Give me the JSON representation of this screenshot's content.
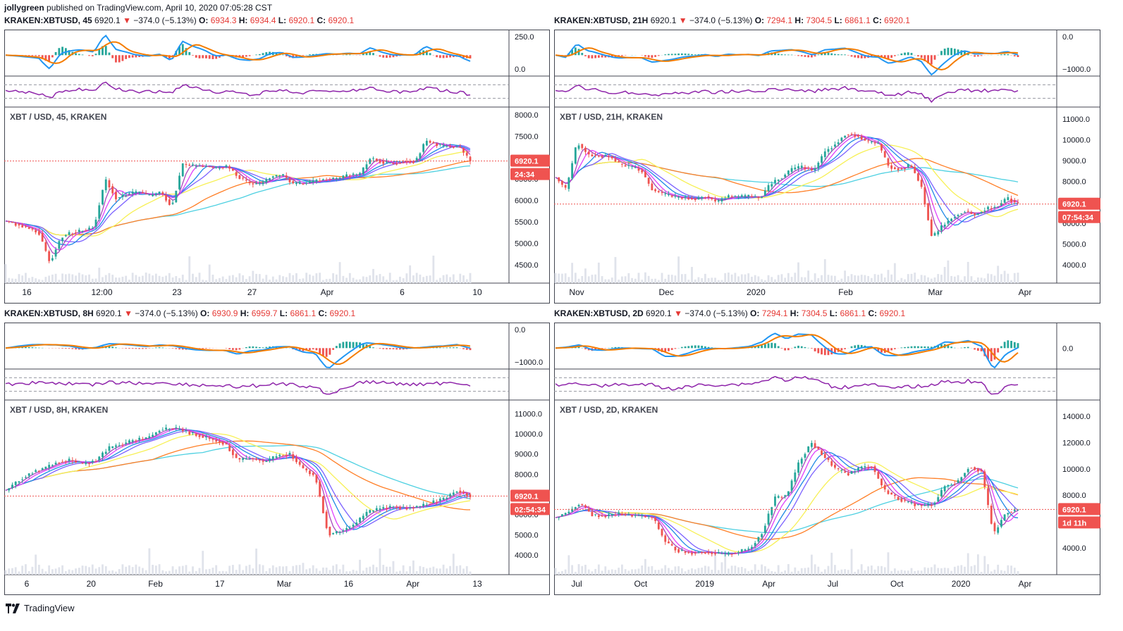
{
  "header": {
    "author": "jollygreen",
    "published": "published on TradingView.com, April 10, 2020 07:05:28 CST"
  },
  "footer": {
    "brand": "TradingView"
  },
  "colors": {
    "down": "#ef5350",
    "up": "#26a69a",
    "macd_fast": "#2196f3",
    "macd_slow": "#f57c00",
    "rsi": "#8e24aa",
    "last_price_bg": "#ef5350",
    "ema_cyan": "#4dd0e1",
    "ema_orange": "#ff7f27",
    "ema_yellow": "#f7f056"
  },
  "chart_data": [
    {
      "type": "line",
      "symbol": "KRAKEN:XBTUSD, 45",
      "price": "6920.1",
      "change": "−374.0 (−5.13%)",
      "O": "6934.3",
      "H": "6934.4",
      "L": "6920.1",
      "C": "6920.1",
      "title": "XBT / USD, 45, KRAKEN",
      "last_price_label": "6920.1",
      "countdown": "24:34",
      "macd_ticks": [
        "250.0",
        "0.0"
      ],
      "y_ticks": [
        "8000.0",
        "7500.0",
        "7000.0",
        "6500.0",
        "6000.0",
        "5500.0",
        "5000.0",
        "4500.0"
      ],
      "x_ticks": [
        "16",
        "12:00",
        "23",
        "27",
        "Apr",
        "6",
        "10"
      ],
      "ylim": [
        4200,
        8050
      ],
      "last": 6920.1,
      "series": [
        {
          "name": "",
          "values": [
            5520,
            5440,
            5350,
            5250,
            4550,
            5150,
            5250,
            5300,
            5400,
            6500,
            6050,
            6150,
            6200,
            6100,
            6200,
            5850,
            6850,
            6800,
            6800,
            6750,
            6800,
            6550,
            6400,
            6380,
            6550,
            6600,
            6380,
            6400,
            6450,
            6500,
            6500,
            6600,
            6600,
            7000,
            6900,
            6850,
            6920,
            6900,
            7400,
            7300,
            7250,
            7250,
            6920
          ]
        }
      ]
    },
    {
      "type": "line",
      "symbol": "KRAKEN:XBTUSD, 21H",
      "price": "6920.1",
      "change": "−374.0 (−5.13%)",
      "O": "7294.1",
      "H": "7304.5",
      "L": "6861.1",
      "C": "6920.1",
      "title": "XBT / USD, 21H, KRAKEN",
      "last_price_label": "6920.1",
      "countdown": "07:54:34",
      "macd_ticks": [
        "0.0",
        "−1000.0"
      ],
      "y_ticks": [
        "11000.0",
        "10000.0",
        "9000.0",
        "8000.0",
        "7000.0",
        "6000.0",
        "5000.0",
        "4000.0"
      ],
      "x_ticks": [
        "Nov",
        "Dec",
        "2020",
        "Feb",
        "Mar",
        "Apr"
      ],
      "ylim": [
        3400,
        11300
      ],
      "last": 6920.1,
      "series": [
        {
          "name": "",
          "values": [
            8200,
            7600,
            9900,
            9300,
            9200,
            9200,
            8800,
            8700,
            8500,
            7600,
            7400,
            7250,
            7200,
            7150,
            7300,
            7000,
            7300,
            7250,
            7300,
            7200,
            7900,
            8200,
            8600,
            8700,
            8500,
            9400,
            9800,
            10300,
            10200,
            9900,
            9800,
            8700,
            8600,
            8800,
            7800,
            5300,
            5900,
            6300,
            6600,
            6400,
            6700,
            6800,
            7200,
            6920
          ]
        }
      ]
    },
    {
      "type": "line",
      "symbol": "KRAKEN:XBTUSD, 8H",
      "price": "6920.1",
      "change": "−374.0 (−5.13%)",
      "O": "6930.9",
      "H": "6959.7",
      "L": "6861.1",
      "C": "6920.1",
      "title": "XBT / USD, 8H, KRAKEN",
      "last_price_label": "6920.1",
      "countdown": "02:54:34",
      "macd_ticks": [
        "0.0",
        "−1000.0"
      ],
      "y_ticks": [
        "11000.0",
        "10000.0",
        "9000.0",
        "8000.0",
        "7000.0",
        "6000.0",
        "5000.0",
        "4000.0"
      ],
      "x_ticks": [
        "6",
        "20",
        "Feb",
        "17",
        "Mar",
        "16",
        "Apr",
        "13"
      ],
      "ylim": [
        3300,
        11400
      ],
      "last": 6920.1,
      "series": [
        {
          "name": "",
          "values": [
            7200,
            7700,
            8100,
            8300,
            8600,
            8700,
            8500,
            8700,
            9300,
            9500,
            9700,
            9800,
            10200,
            10300,
            10100,
            9900,
            9700,
            9500,
            8700,
            8800,
            8600,
            8900,
            9000,
            8300,
            7900,
            5000,
            5200,
            5500,
            6100,
            6300,
            6400,
            6300,
            6400,
            6600,
            6800,
            7200,
            6920
          ]
        }
      ]
    },
    {
      "type": "line",
      "symbol": "KRAKEN:XBTUSD, 2D",
      "price": "6920.1",
      "change": "−374.0 (−5.13%)",
      "O": "7294.1",
      "H": "7304.5",
      "L": "6861.1",
      "C": "6920.1",
      "title": "XBT / USD, 2D, KRAKEN",
      "last_price_label": "6920.1",
      "countdown": "1d 11h",
      "macd_ticks": [
        "0.0"
      ],
      "y_ticks": [
        "14000.0",
        "12000.0",
        "10000.0",
        "8000.0",
        "6000.0",
        "4000.0"
      ],
      "x_ticks": [
        "Jul",
        "Oct",
        "2019",
        "Apr",
        "Jul",
        "Oct",
        "2020",
        "Apr"
      ],
      "ylim": [
        2400,
        14800
      ],
      "last": 6920.1,
      "series": [
        {
          "name": "",
          "values": [
            6300,
            6700,
            7400,
            6500,
            6400,
            6600,
            6500,
            6400,
            6300,
            4500,
            3800,
            3600,
            3700,
            3600,
            3500,
            3700,
            4000,
            5200,
            7800,
            8000,
            10500,
            12000,
            11000,
            10000,
            9600,
            10100,
            10200,
            8400,
            7800,
            7400,
            7200,
            7300,
            8700,
            9000,
            10200,
            9800,
            5000,
            6700,
            6920
          ]
        }
      ]
    }
  ]
}
